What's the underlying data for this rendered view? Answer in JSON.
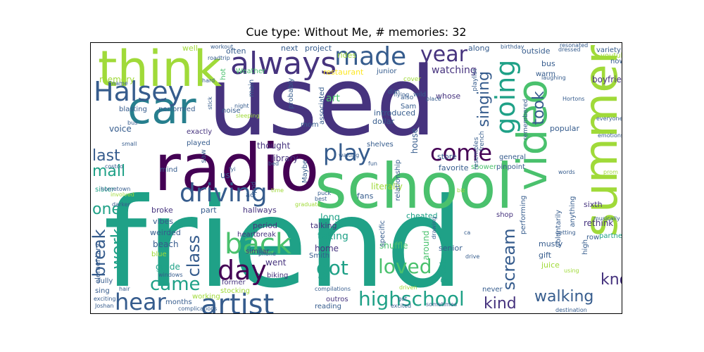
{
  "title": "Cue type: Without Me, # memories: 32",
  "palette": {
    "dark_purple": "#440154",
    "indigo": "#46337e",
    "slate": "#365c8d",
    "blue": "#277f8e",
    "teal": "#1fa187",
    "green": "#4ac16d",
    "lime": "#a0da39",
    "yellow": "#fde725"
  },
  "words": [
    {
      "text": "friend",
      "color": "teal"
    },
    {
      "text": "used",
      "color": "indigo"
    },
    {
      "text": "school",
      "color": "green"
    },
    {
      "text": "radio",
      "color": "dark_purple"
    },
    {
      "text": "summer",
      "color": "lime"
    },
    {
      "text": "think",
      "color": "lime"
    },
    {
      "text": "car",
      "color": "blue"
    },
    {
      "text": "video",
      "color": "green"
    },
    {
      "text": "Halsey",
      "color": "slate"
    },
    {
      "text": "always",
      "color": "indigo"
    },
    {
      "text": "made",
      "color": "slate"
    },
    {
      "text": "going",
      "color": "teal"
    },
    {
      "text": "artist",
      "color": "slate"
    },
    {
      "text": "back",
      "color": "green"
    },
    {
      "text": "driving",
      "color": "slate"
    },
    {
      "text": "day",
      "color": "dark_purple"
    },
    {
      "text": "hear",
      "color": "slate"
    },
    {
      "text": "highschool",
      "color": "teal"
    },
    {
      "text": "play",
      "color": "slate"
    },
    {
      "text": "come",
      "color": "dark_purple"
    },
    {
      "text": "singing",
      "color": "slate"
    },
    {
      "text": "took",
      "color": "slate"
    },
    {
      "text": "year",
      "color": "indigo"
    },
    {
      "text": "last",
      "color": "slate"
    },
    {
      "text": "mall",
      "color": "teal"
    },
    {
      "text": "one",
      "color": "teal"
    },
    {
      "text": "break",
      "color": "slate"
    },
    {
      "text": "work",
      "color": "teal"
    },
    {
      "text": "class",
      "color": "slate"
    },
    {
      "text": "came",
      "color": "teal"
    },
    {
      "text": "got",
      "color": "teal"
    },
    {
      "text": "loved",
      "color": "green"
    },
    {
      "text": "scream",
      "color": "slate"
    },
    {
      "text": "know",
      "color": "indigo"
    },
    {
      "text": "kind",
      "color": "indigo"
    },
    {
      "text": "walking",
      "color": "slate"
    },
    {
      "text": "watching",
      "color": "indigo"
    },
    {
      "text": "blasting",
      "color": "slate"
    },
    {
      "text": "performed",
      "color": "slate"
    },
    {
      "text": "exactly",
      "color": "indigo"
    },
    {
      "text": "played",
      "color": "slate"
    },
    {
      "text": "thought",
      "color": "indigo"
    },
    {
      "text": "library",
      "color": "indigo"
    },
    {
      "text": "noise",
      "color": "slate"
    },
    {
      "text": "memory",
      "color": "lime"
    },
    {
      "text": "art",
      "color": "green"
    },
    {
      "text": "house",
      "color": "slate"
    },
    {
      "text": "boyfriend",
      "color": "indigo"
    },
    {
      "text": "outside",
      "color": "slate"
    },
    {
      "text": "popular",
      "color": "slate"
    },
    {
      "text": "store",
      "color": "slate"
    },
    {
      "text": "favorite",
      "color": "slate"
    },
    {
      "text": "shower",
      "color": "green"
    },
    {
      "text": "pinpoint",
      "color": "slate"
    },
    {
      "text": "general",
      "color": "slate"
    },
    {
      "text": "hallways",
      "color": "indigo"
    },
    {
      "text": "heartbreak",
      "color": "indigo"
    },
    {
      "text": "beach",
      "color": "slate"
    },
    {
      "text": "grade",
      "color": "teal"
    },
    {
      "text": "went",
      "color": "indigo"
    },
    {
      "text": "home",
      "color": "indigo"
    },
    {
      "text": "taking",
      "color": "teal"
    },
    {
      "text": "shuffle",
      "color": "green"
    },
    {
      "text": "senior",
      "color": "slate"
    },
    {
      "text": "musty",
      "color": "slate"
    },
    {
      "text": "gift",
      "color": "slate"
    },
    {
      "text": "juice",
      "color": "lime"
    },
    {
      "text": "rethink",
      "color": "indigo"
    },
    {
      "text": "partner",
      "color": "teal"
    },
    {
      "text": "sixth",
      "color": "indigo"
    },
    {
      "text": "cheated",
      "color": "teal"
    },
    {
      "text": "long",
      "color": "teal"
    },
    {
      "text": "talking",
      "color": "indigo"
    },
    {
      "text": "period",
      "color": "indigo"
    },
    {
      "text": "shop",
      "color": "indigo"
    },
    {
      "text": "fans",
      "color": "slate"
    },
    {
      "text": "literally",
      "color": "lime"
    },
    {
      "text": "Maybe",
      "color": "slate"
    },
    {
      "text": "shelves",
      "color": "slate"
    },
    {
      "text": "broke",
      "color": "indigo"
    },
    {
      "text": "vibes",
      "color": "slate"
    },
    {
      "text": "part",
      "color": "slate"
    },
    {
      "text": "weirded",
      "color": "slate"
    },
    {
      "text": "mind",
      "color": "slate"
    },
    {
      "text": "blue",
      "color": "lime"
    },
    {
      "text": "similar",
      "color": "indigo"
    },
    {
      "text": "biking",
      "color": "indigo"
    },
    {
      "text": "stocking",
      "color": "lime"
    },
    {
      "text": "working",
      "color": "lime"
    },
    {
      "text": "months",
      "color": "slate"
    },
    {
      "text": "former",
      "color": "indigo"
    },
    {
      "text": "outros",
      "color": "indigo"
    },
    {
      "text": "reading",
      "color": "slate"
    },
    {
      "text": "rides",
      "color": "lime"
    },
    {
      "text": "project",
      "color": "slate"
    },
    {
      "text": "next",
      "color": "slate"
    },
    {
      "text": "often",
      "color": "slate"
    },
    {
      "text": "well",
      "color": "lime"
    },
    {
      "text": "restaurant",
      "color": "yellow"
    },
    {
      "text": "junior",
      "color": "slate"
    },
    {
      "text": "introduced",
      "color": "slate"
    },
    {
      "text": "dollar",
      "color": "slate"
    },
    {
      "text": "whose",
      "color": "indigo"
    },
    {
      "text": "along",
      "color": "slate"
    },
    {
      "text": "bus",
      "color": "slate"
    },
    {
      "text": "warm",
      "color": "slate"
    },
    {
      "text": "now",
      "color": "slate"
    },
    {
      "text": "variety",
      "color": "slate"
    },
    {
      "text": "youtube",
      "color": "lime"
    },
    {
      "text": "voice",
      "color": "slate"
    },
    {
      "text": "mom",
      "color": "slate"
    },
    {
      "text": "associated",
      "color": "slate"
    },
    {
      "text": "probably",
      "color": "slate"
    },
    {
      "text": "Weather",
      "color": "green"
    },
    {
      "text": "hot",
      "color": "green"
    },
    {
      "text": "main",
      "color": "slate"
    },
    {
      "text": "us",
      "color": "slate"
    },
    {
      "text": "ipod",
      "color": "slate"
    },
    {
      "text": "ac",
      "color": "slate"
    },
    {
      "text": "saw",
      "color": "slate"
    },
    {
      "text": "Sam",
      "color": "slate"
    },
    {
      "text": "Smith",
      "color": "slate"
    },
    {
      "text": "specific",
      "color": "slate"
    },
    {
      "text": "relationship",
      "color": "slate"
    },
    {
      "text": "around",
      "color": "green"
    },
    {
      "text": "great",
      "color": "teal"
    },
    {
      "text": "performing",
      "color": "slate"
    },
    {
      "text": "voluntarily",
      "color": "slate"
    },
    {
      "text": "anything",
      "color": "slate"
    },
    {
      "text": "high",
      "color": "slate"
    },
    {
      "text": "row",
      "color": "slate"
    },
    {
      "text": "sister",
      "color": "teal"
    },
    {
      "text": "sing",
      "color": "slate"
    },
    {
      "text": "fully",
      "color": "slate"
    },
    {
      "text": "elementary",
      "color": "slate"
    },
    {
      "text": "never",
      "color": "slate"
    },
    {
      "text": "playlist",
      "color": "slate"
    },
    {
      "text": "french",
      "color": "slate"
    },
    {
      "text": "remembered",
      "color": "slate"
    },
    {
      "text": "resembles",
      "color": "slate"
    },
    {
      "text": "dim",
      "color": "slate"
    },
    {
      "text": "cover",
      "color": "lime"
    },
    {
      "text": "wild",
      "color": "slate"
    },
    {
      "text": "also",
      "color": "slate"
    },
    {
      "text": "Hortons",
      "color": "slate"
    },
    {
      "text": "emotions",
      "color": "slate"
    },
    {
      "text": "flying",
      "color": "slate"
    },
    {
      "text": "place",
      "color": "slate"
    },
    {
      "text": "laughing",
      "color": "slate"
    },
    {
      "text": "dressed",
      "color": "slate"
    },
    {
      "text": "birthday",
      "color": "slate"
    },
    {
      "text": "resonated",
      "color": "slate"
    },
    {
      "text": "roadtrip",
      "color": "slate"
    },
    {
      "text": "workout",
      "color": "slate"
    },
    {
      "text": "name",
      "color": "slate"
    },
    {
      "text": "hard",
      "color": "slate"
    },
    {
      "text": "night",
      "color": "slate"
    },
    {
      "text": "sleeping",
      "color": "lime"
    },
    {
      "text": "stick",
      "color": "slate"
    },
    {
      "text": "waiting",
      "color": "slate"
    },
    {
      "text": "hometown",
      "color": "slate"
    },
    {
      "text": "costco",
      "color": "slate"
    },
    {
      "text": "involved",
      "color": "lime"
    },
    {
      "text": "darker",
      "color": "slate"
    },
    {
      "text": "bed",
      "color": "slate"
    },
    {
      "text": "graduate",
      "color": "lime"
    },
    {
      "text": "puck",
      "color": "slate"
    },
    {
      "text": "best",
      "color": "slate"
    },
    {
      "text": "phone",
      "color": "slate"
    },
    {
      "text": "windows",
      "color": "slate"
    },
    {
      "text": "hair",
      "color": "slate"
    },
    {
      "text": "Joshan",
      "color": "slate"
    },
    {
      "text": "exciting",
      "color": "slate"
    },
    {
      "text": "complications",
      "color": "slate"
    },
    {
      "text": "compilations",
      "color": "slate"
    },
    {
      "text": "excited",
      "color": "slate"
    },
    {
      "text": "sometimes",
      "color": "slate"
    },
    {
      "text": "drive",
      "color": "slate"
    },
    {
      "text": "ca",
      "color": "slate"
    },
    {
      "text": "getting",
      "color": "slate"
    },
    {
      "text": "musically",
      "color": "slate"
    },
    {
      "text": "using",
      "color": "lime"
    },
    {
      "text": "destination",
      "color": "slate"
    },
    {
      "text": "words",
      "color": "slate"
    },
    {
      "text": "prom",
      "color": "lime"
    },
    {
      "text": "everyone",
      "color": "slate"
    },
    {
      "text": "small",
      "color": "slate"
    },
    {
      "text": "bus",
      "color": "slate"
    },
    {
      "text": "time",
      "color": "lime"
    },
    {
      "text": "fyi",
      "color": "slate"
    },
    {
      "text": "got",
      "color": "slate"
    },
    {
      "text": "fun",
      "color": "slate"
    },
    {
      "text": "biz",
      "color": "lime"
    },
    {
      "text": "driven",
      "color": "lime"
    },
    {
      "text": "drawing",
      "color": "slate"
    }
  ]
}
